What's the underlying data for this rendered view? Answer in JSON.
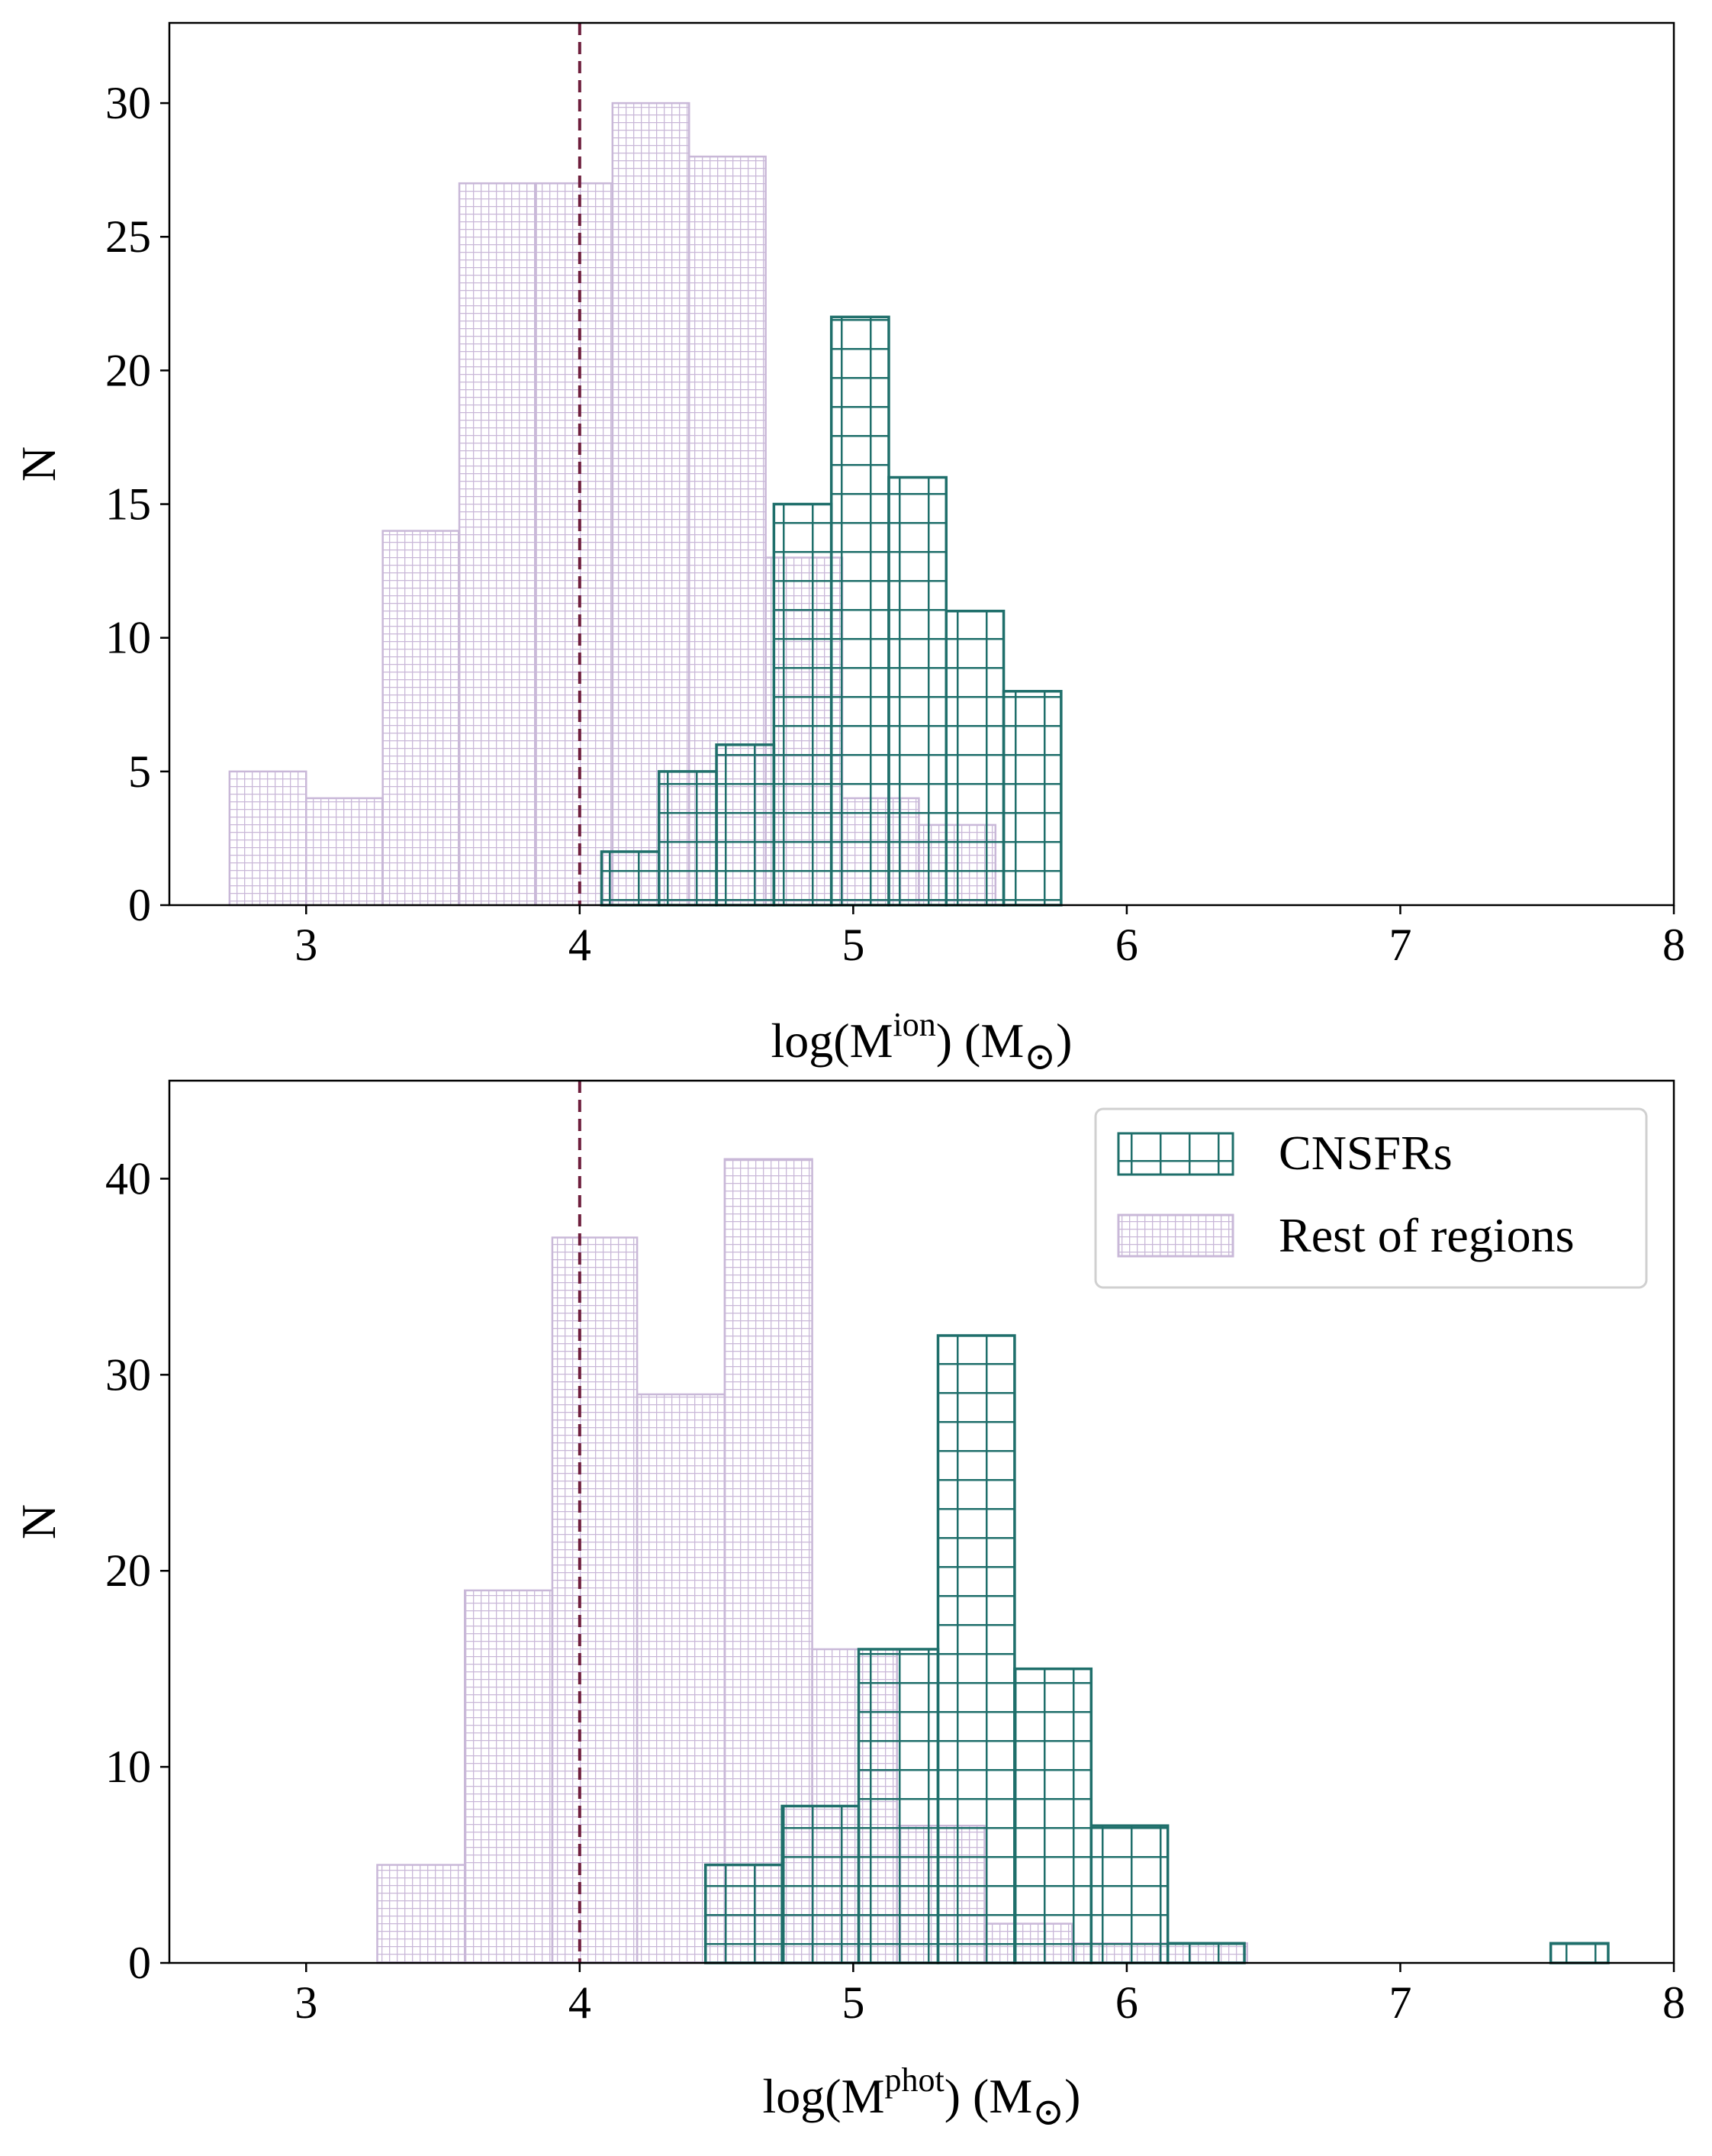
{
  "colors": {
    "cnsfr": "#1f6f6b",
    "rest": "#c9b8d8",
    "threshold": "#6e1e3c",
    "axis": "#000000"
  },
  "legend": {
    "cnsfr_label": "CNSFRs",
    "rest_label": "Rest of regions",
    "location": "upper right"
  },
  "chart_data": [
    {
      "type": "histogram",
      "panel": "top",
      "ylabel": "N",
      "xlabel_main": "log(M",
      "xlabel_sup": "ion",
      "xlabel_tail": ") (M",
      "xlabel_sub": "⊙",
      "xlabel_end": ")",
      "xlim": [
        2.5,
        8
      ],
      "ylim": [
        0,
        33
      ],
      "xticks": [
        "3",
        "4",
        "5",
        "6",
        "7",
        "8"
      ],
      "xtick_values": [
        3,
        4,
        5,
        6,
        7,
        8
      ],
      "yticks": [
        "0",
        "5",
        "10",
        "15",
        "20",
        "25",
        "30"
      ],
      "ytick_values": [
        0,
        5,
        10,
        15,
        20,
        25,
        30
      ],
      "threshold_x": 4,
      "series": [
        {
          "name": "Rest of regions",
          "edges": [
            2.72,
            3.0,
            3.28,
            3.56,
            3.84,
            4.12,
            4.4,
            4.68,
            4.96,
            5.24,
            5.52
          ],
          "counts": [
            5,
            4,
            14,
            27,
            27,
            30,
            28,
            13,
            4,
            3
          ]
        },
        {
          "name": "CNSFRs",
          "edges": [
            4.08,
            4.29,
            4.5,
            4.71,
            4.92,
            5.13,
            5.34,
            5.55,
            5.76
          ],
          "counts": [
            2,
            5,
            6,
            15,
            22,
            16,
            11,
            8
          ]
        }
      ]
    },
    {
      "type": "histogram",
      "panel": "bottom",
      "ylabel": "N",
      "xlabel_main": "log(M",
      "xlabel_sup": "phot",
      "xlabel_tail": ") (M",
      "xlabel_sub": "⊙",
      "xlabel_end": ")",
      "xlim": [
        2.5,
        8
      ],
      "ylim": [
        0,
        45
      ],
      "xticks": [
        "3",
        "4",
        "5",
        "6",
        "7",
        "8"
      ],
      "xtick_values": [
        3,
        4,
        5,
        6,
        7,
        8
      ],
      "yticks": [
        "0",
        "10",
        "20",
        "30",
        "40"
      ],
      "ytick_values": [
        0,
        10,
        20,
        30,
        40
      ],
      "threshold_x": 4,
      "series": [
        {
          "name": "Rest of regions",
          "edges": [
            3.26,
            3.58,
            3.9,
            4.21,
            4.53,
            4.85,
            5.16,
            5.48,
            5.8,
            6.12,
            6.44
          ],
          "counts": [
            5,
            19,
            37,
            29,
            41,
            16,
            7,
            2,
            1,
            1
          ]
        },
        {
          "name": "CNSFRs",
          "edges": [
            4.46,
            4.74,
            5.02,
            5.31,
            5.59,
            5.87,
            6.15,
            6.43,
            6.71,
            6.99,
            7.27,
            7.55,
            7.76
          ],
          "counts": [
            5,
            8,
            16,
            32,
            15,
            7,
            1,
            0,
            0,
            0,
            0,
            1
          ]
        }
      ]
    }
  ]
}
